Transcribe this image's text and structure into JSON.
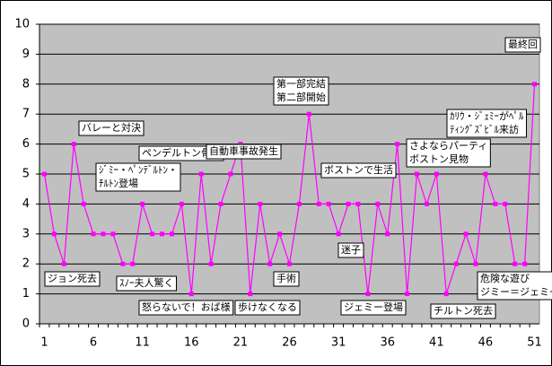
{
  "chart_data": {
    "type": "line",
    "categories": [
      1,
      null,
      null,
      null,
      null,
      6,
      null,
      null,
      null,
      null,
      11,
      null,
      null,
      null,
      null,
      16,
      null,
      null,
      null,
      null,
      21,
      null,
      null,
      null,
      null,
      26,
      null,
      null,
      null,
      null,
      31,
      null,
      null,
      null,
      null,
      36,
      null,
      null,
      null,
      null,
      41,
      null,
      null,
      null,
      null,
      46,
      null,
      null,
      null,
      null,
      51
    ],
    "values": [
      5,
      3,
      2,
      6,
      4,
      3,
      3,
      3,
      2,
      2,
      4,
      3,
      3,
      3,
      4,
      1,
      5,
      2,
      4,
      5,
      6,
      1,
      4,
      2,
      3,
      2,
      4,
      7,
      4,
      4,
      3,
      4,
      4,
      1,
      4,
      3,
      6,
      1,
      5,
      4,
      5,
      1,
      2,
      3,
      2,
      5,
      4,
      4,
      2,
      2,
      8
    ],
    "color": "#ff00ff",
    "ylim": [
      0,
      10
    ],
    "yticks": [
      0,
      1,
      2,
      3,
      4,
      5,
      6,
      7,
      8,
      9,
      10
    ],
    "grid": true,
    "annotations": [
      [
        "バレーと対決"
      ],
      [
        "ｼﾞﾐｰ・ﾍﾟﾝﾃﾞﾙﾄﾝ・",
        "ﾁﾙﾄﾝ登場"
      ],
      [
        "ペンデルトン骨折"
      ],
      [
        "自動車事故発生"
      ],
      [
        "第一部完結",
        "第二部開始"
      ],
      [
        "ボストンで生活"
      ],
      [
        "さよならパーティ",
        "ボストン見物"
      ],
      [
        "ｶﾘｳ・ｼﾞｪﾐｰがﾍﾟﾙ",
        "ﾃｨﾝｸﾞｽﾞﾋﾞﾙ来訪"
      ],
      [
        "最終回"
      ],
      [
        "ジョン死去"
      ],
      [
        "ｽﾉｰ夫人驚く"
      ],
      [
        "怒らないで！おば様"
      ],
      [
        "歩けなくなる"
      ],
      [
        "手術"
      ],
      [
        "迷子"
      ],
      [
        "ジェミー登場"
      ],
      [
        "チルトン死去"
      ],
      [
        "危険な遊び",
        "ジミー＝ジェミー"
      ]
    ]
  }
}
